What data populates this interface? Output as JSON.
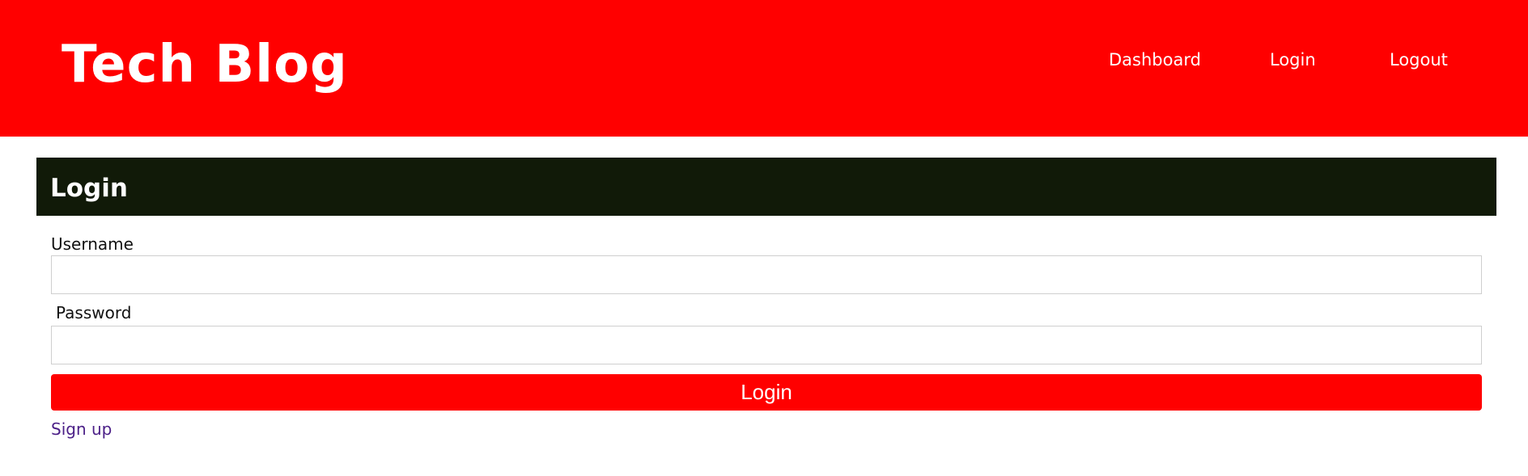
{
  "header": {
    "title": "Tech Blog",
    "background_color": "#ff0000",
    "nav": [
      {
        "label": "Dashboard"
      },
      {
        "label": "Login"
      },
      {
        "label": "Logout"
      }
    ]
  },
  "login_card": {
    "title": "Login",
    "header_color": "#111a08",
    "username": {
      "label": "Username",
      "value": "",
      "placeholder": ""
    },
    "password": {
      "label": "Password",
      "value": "",
      "placeholder": ""
    },
    "submit_label": "Login",
    "submit_color": "#ff0000",
    "signup_label": "Sign up",
    "signup_color": "#4b1f87"
  }
}
